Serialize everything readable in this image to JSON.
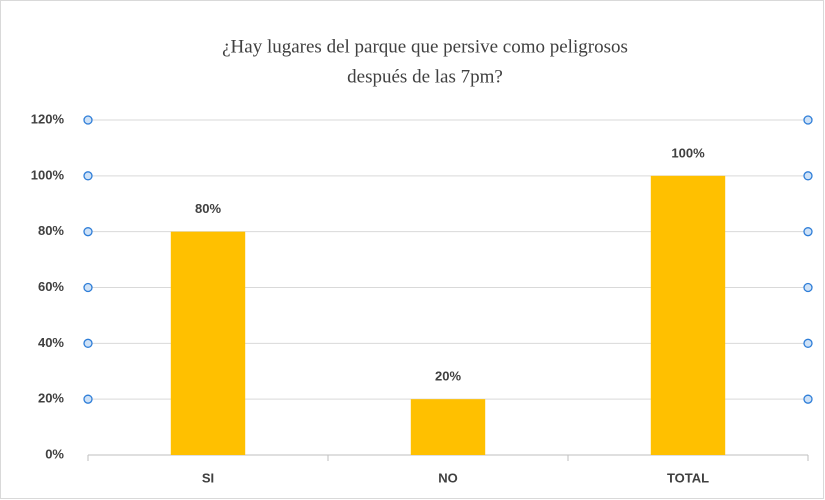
{
  "chart_data": {
    "type": "bar",
    "title": [
      "¿Hay lugares del parque que persive como peligrosos",
      "después de las 7pm?"
    ],
    "categories": [
      "SI",
      "NO",
      "TOTAL"
    ],
    "values": [
      80,
      20,
      100
    ],
    "value_labels": [
      "80%",
      "20%",
      "100%"
    ],
    "color": "#ffc000",
    "ylim": [
      0,
      120
    ],
    "yticks": [
      {
        "value": 0,
        "label": "0%"
      },
      {
        "value": 20,
        "label": "20%"
      },
      {
        "value": 40,
        "label": "40%"
      },
      {
        "value": 60,
        "label": "60%"
      },
      {
        "value": 80,
        "label": "80%"
      },
      {
        "value": 100,
        "label": "100%"
      },
      {
        "value": 120,
        "label": "120%"
      }
    ],
    "grid": true
  }
}
